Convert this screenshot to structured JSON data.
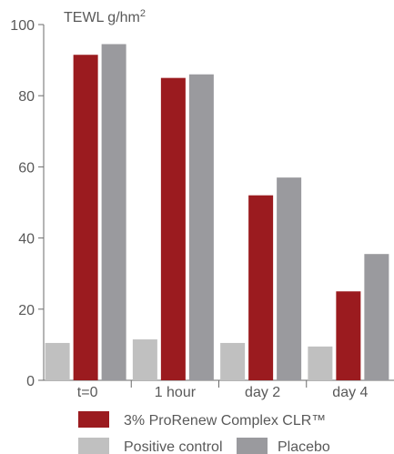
{
  "chart_data": {
    "type": "bar",
    "ylabel": "TEWL g/hm",
    "ylabel_sup": "2",
    "ylim": [
      0,
      100
    ],
    "yticks": [
      0,
      20,
      40,
      60,
      80,
      100
    ],
    "categories": [
      "t=0",
      "1 hour",
      "day 2",
      "day 4"
    ],
    "series": [
      {
        "name": "Positive control",
        "values": [
          10.5,
          11.5,
          10.5,
          9.5
        ],
        "color": "#c0c0c0"
      },
      {
        "name": "3% ProRenew Complex CLR™",
        "values": [
          91.5,
          85,
          52,
          25
        ],
        "color": "#9b1b1f"
      },
      {
        "name": "Placebo",
        "values": [
          94.5,
          86,
          57,
          35.5
        ],
        "color": "#9a9a9e"
      }
    ],
    "legend_position": "bottom",
    "grid": false
  }
}
